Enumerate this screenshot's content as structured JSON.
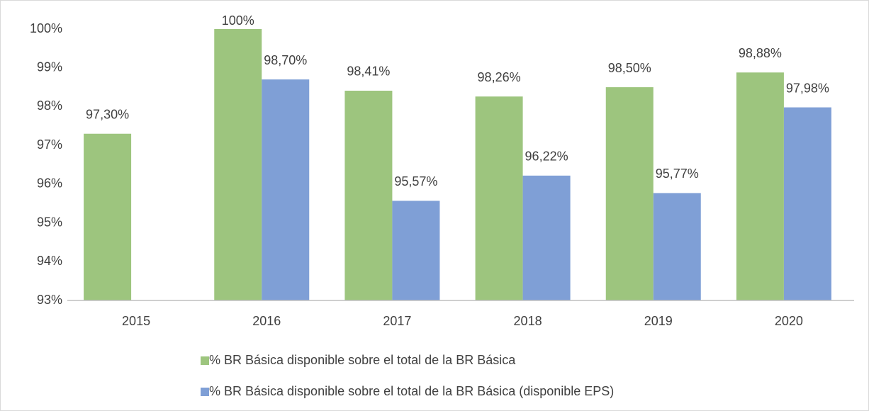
{
  "chart_data": {
    "type": "bar",
    "categories": [
      "2015",
      "2016",
      "2017",
      "2018",
      "2019",
      "2020"
    ],
    "series": [
      {
        "name": "% BR Básica disponible sobre el total de la BR Básica",
        "color": "#9dc57e",
        "values": [
          97.3,
          100,
          98.41,
          98.26,
          98.5,
          98.88
        ],
        "value_labels": [
          "97,30%",
          "100%",
          "98,41%",
          "98,26%",
          "98,50%",
          "98,88%"
        ]
      },
      {
        "name": "% BR Básica disponible sobre el total de la BR Básica (disponible EPS)",
        "color": "#7f9fd6",
        "values": [
          null,
          98.7,
          95.57,
          96.22,
          95.77,
          97.98
        ],
        "value_labels": [
          null,
          "98,70%",
          "95,57%",
          "96,22%",
          "95,77%",
          "97,98%"
        ]
      }
    ],
    "ylim": [
      93,
      100
    ],
    "yticks": [
      {
        "value": 93,
        "label": "93%"
      },
      {
        "value": 94,
        "label": "94%"
      },
      {
        "value": 95,
        "label": "95%"
      },
      {
        "value": 96,
        "label": "96%"
      },
      {
        "value": 97,
        "label": "97%"
      },
      {
        "value": 98,
        "label": "98%"
      },
      {
        "value": 99,
        "label": "99%"
      },
      {
        "value": 100,
        "label": "100%"
      }
    ],
    "grid": false,
    "legend": "bottom"
  }
}
